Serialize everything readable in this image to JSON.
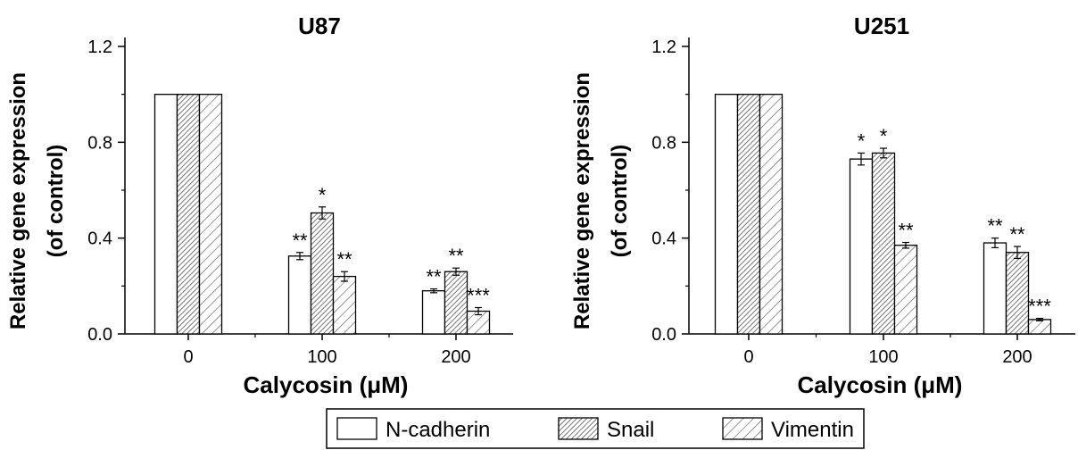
{
  "chart_data": [
    {
      "type": "bar",
      "title": "U87",
      "xlabel": "Calycosin (μM)",
      "ylabel_line1": "Relative gene expression",
      "ylabel_line2": "(of control)",
      "categories": [
        "0",
        "100",
        "200"
      ],
      "ylim": [
        0,
        1.2
      ],
      "yticks": [
        "0.0",
        "0.4",
        "0.8",
        "1.2"
      ],
      "series": [
        {
          "name": "N-cadherin",
          "values": [
            1.0,
            0.325,
            0.18
          ],
          "errors": [
            0,
            0.015,
            0.008
          ],
          "significance": [
            "",
            "**",
            "**"
          ]
        },
        {
          "name": "Snail",
          "values": [
            1.0,
            0.505,
            0.26
          ],
          "errors": [
            0,
            0.025,
            0.015
          ],
          "significance": [
            "",
            "*",
            "**"
          ]
        },
        {
          "name": "Vimentin",
          "values": [
            1.0,
            0.24,
            0.095
          ],
          "errors": [
            0,
            0.02,
            0.015
          ],
          "significance": [
            "",
            "**",
            "***"
          ]
        }
      ]
    },
    {
      "type": "bar",
      "title": "U251",
      "xlabel": "Calycosin (μM)",
      "ylabel_line1": "Relative gene expression",
      "ylabel_line2": "(of control)",
      "categories": [
        "0",
        "100",
        "200"
      ],
      "ylim": [
        0,
        1.2
      ],
      "yticks": [
        "0.0",
        "0.4",
        "0.8",
        "1.2"
      ],
      "series": [
        {
          "name": "N-cadherin",
          "values": [
            1.0,
            0.73,
            0.38
          ],
          "errors": [
            0,
            0.025,
            0.02
          ],
          "significance": [
            "",
            "*",
            "**"
          ]
        },
        {
          "name": "Snail",
          "values": [
            1.0,
            0.755,
            0.34
          ],
          "errors": [
            0,
            0.02,
            0.025
          ],
          "significance": [
            "",
            "*",
            "**"
          ]
        },
        {
          "name": "Vimentin",
          "values": [
            1.0,
            0.37,
            0.06
          ],
          "errors": [
            0,
            0.012,
            0.005
          ],
          "significance": [
            "",
            "**",
            "***"
          ]
        }
      ]
    }
  ],
  "legend": {
    "placement": "bottom-center",
    "items": [
      {
        "label": "N-cadherin",
        "pattern": "none"
      },
      {
        "label": "Snail",
        "pattern": "dense-hatch"
      },
      {
        "label": "Vimentin",
        "pattern": "sparse-hatch"
      }
    ]
  }
}
